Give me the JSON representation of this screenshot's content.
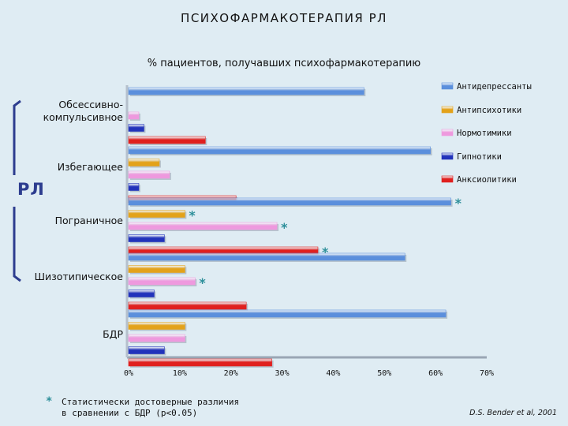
{
  "header": {
    "title": "ПСИХОФАРМАКОТЕРАПИЯ РЛ",
    "subtitle": "% пациентов, получавших психофармакотерапию"
  },
  "bracket_label": "РЛ",
  "footnote": {
    "marker": "*",
    "line1": "Статистически достоверные различия",
    "line2": "в сравнении с БДР (p<0.05)"
  },
  "source": "D.S. Bender et al, 2001",
  "colors": {
    "background": "#dfecf3",
    "bracket": "#2d3d8f",
    "star": "#2d8f9a"
  },
  "chart_data": {
    "type": "bar",
    "orientation": "horizontal",
    "title": "ПСИХОФАРМАКОТЕРАПИЯ РЛ",
    "subtitle": "% пациентов, получавших психофармакотерапию",
    "categories": [
      "Обсессивно-\nкомпульсивное",
      "Избегающее",
      "Пограничное",
      "Шизотипическое",
      "БДР"
    ],
    "xlim": [
      0,
      70
    ],
    "xticks": [
      "0%",
      "10%",
      "20%",
      "30%",
      "40%",
      "50%",
      "60%",
      "70%"
    ],
    "legend_position": "right",
    "series": [
      {
        "name": "Антидепрессанты",
        "color": "#5b8fdc",
        "values": [
          46,
          59,
          63,
          54,
          62
        ],
        "significant": [
          false,
          false,
          true,
          false,
          false
        ]
      },
      {
        "name": "Антипсихотики",
        "color": "#e3a21a",
        "values": [
          0,
          6,
          11,
          11,
          11
        ],
        "significant": [
          false,
          false,
          true,
          false,
          false
        ]
      },
      {
        "name": "Нормотимики",
        "color": "#ee99de",
        "values": [
          2,
          8,
          29,
          13,
          11
        ],
        "significant": [
          false,
          false,
          true,
          true,
          false
        ]
      },
      {
        "name": "Гипнотики",
        "color": "#2233bb",
        "values": [
          3,
          2,
          7,
          5,
          7
        ],
        "significant": [
          false,
          false,
          false,
          false,
          false
        ]
      },
      {
        "name": "Анксиолитики",
        "color": "#e0201e",
        "values": [
          15,
          21,
          37,
          23,
          28
        ],
        "significant": [
          false,
          false,
          true,
          false,
          false
        ]
      }
    ]
  }
}
